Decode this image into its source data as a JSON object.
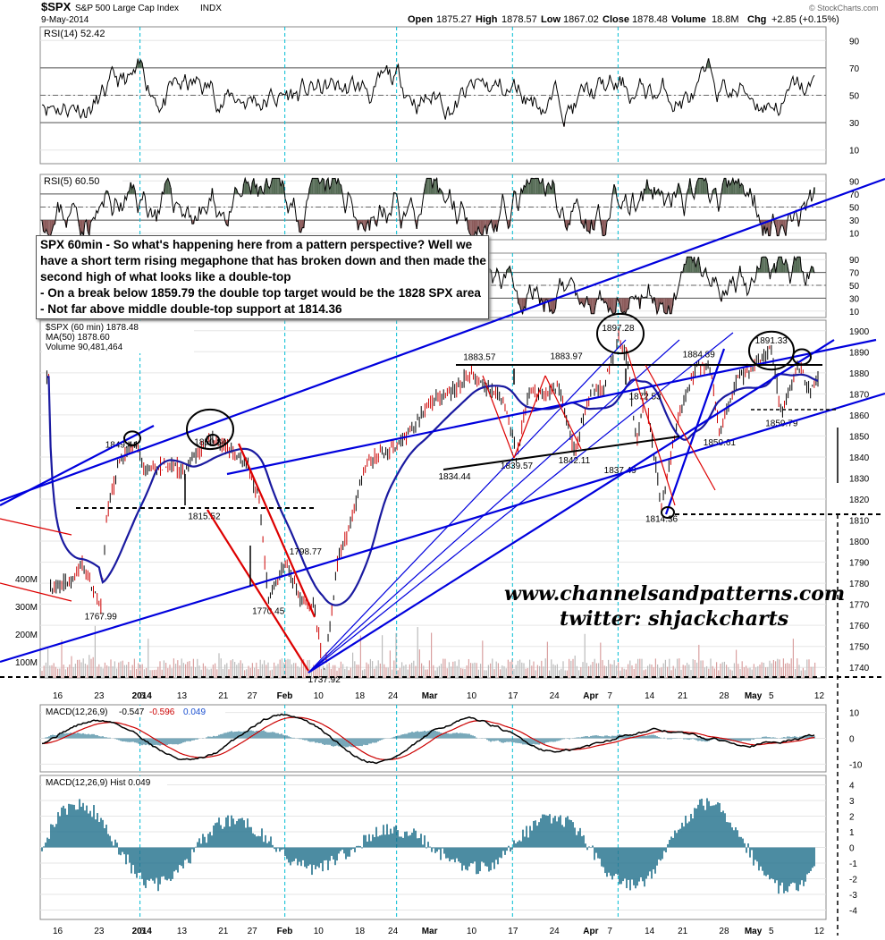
{
  "header": {
    "symbol": "$SPX",
    "name": "S&P 500 Large Cap Index",
    "exchange": "INDX",
    "date": "9-May-2014",
    "open_label": "Open",
    "open": "1875.27",
    "high_label": "High",
    "high": "1878.57",
    "low_label": "Low",
    "low": "1867.02",
    "close_label": "Close",
    "close": "1878.48",
    "volume_label": "Volume",
    "volume": "18.8M",
    "chg_label": "Chg",
    "chg": "+2.85 (+0.15%)",
    "copyright": "© StockCharts.com"
  },
  "note": {
    "lines": [
      "SPX 60min - So what's happening here from a pattern perspective? Well we",
      "have a short term rising megaphone that has broken down and then made the",
      "second high of what looks like a double-top",
      "- On a break below 1859.79 the double top target would be the 1828 SPX area",
      "- Not far above middle double-top support at 1814.36"
    ]
  },
  "watermark": {
    "site": "www.channelsandpatterns.com",
    "twitter": "twitter: shjackcharts"
  },
  "colors": {
    "price": "#000000",
    "ma": "#1a1aa0",
    "trend": "#0000dd",
    "pattern": "#dd0000",
    "rsi_up": "#556b55",
    "rsi_down": "#8b5a5a",
    "macd_hist": "#1f6f8b",
    "cycle": "#00bcd4"
  },
  "chart_data": [
    {
      "type": "line",
      "panel": "RSI(14)",
      "title": "RSI(14) 52.42",
      "yticks": [
        10,
        30,
        50,
        70,
        90
      ],
      "ylim": [
        0,
        100
      ],
      "overbought": 70,
      "oversold": 30,
      "mid": 50
    },
    {
      "type": "line",
      "panel": "RSI(5)",
      "title": "RSI(5) 60.50",
      "yticks": [
        10,
        30,
        50,
        70,
        90
      ],
      "ylim": [
        0,
        100
      ]
    },
    {
      "type": "line",
      "panel": "RSI(5) lower",
      "yticks": [
        10,
        30,
        50,
        70,
        90
      ],
      "ylim": [
        0,
        100
      ]
    },
    {
      "type": "line",
      "panel": "price",
      "legend": [
        "$SPX (60 min) 1878.48",
        "MA(50) 1878.60",
        "Volume 90,481,464"
      ],
      "series": [
        {
          "name": "$SPX (60 min)"
        },
        {
          "name": "MA(50)"
        }
      ],
      "yticks": [
        1740,
        1750,
        1760,
        1770,
        1780,
        1790,
        1800,
        1810,
        1820,
        1830,
        1840,
        1850,
        1860,
        1870,
        1880,
        1890,
        1900
      ],
      "ylim": [
        1735,
        1905
      ],
      "volume_ticks": [
        "100M",
        "200M",
        "300M",
        "400M"
      ],
      "x_labels": [
        "16",
        "23",
        "2014",
        "6",
        "13",
        "21",
        "27",
        "Feb",
        "10",
        "18",
        "24",
        "Mar",
        "10",
        "17",
        "24",
        "Apr",
        "7",
        "14",
        "21",
        "28",
        "May",
        "5",
        "12"
      ],
      "x_values": [
        0.0,
        1.0,
        2.0,
        2.1,
        3.0,
        4.0,
        4.7,
        5.5,
        6.3,
        7.3,
        8.1,
        9.0,
        10.0,
        11.0,
        12.0,
        12.9,
        13.4,
        14.3,
        15.1,
        16.1,
        16.8,
        17.3,
        18.4
      ],
      "annotations": [
        {
          "x": 1.55,
          "y": 1849.44,
          "label": "1849.44"
        },
        {
          "x": 3.7,
          "y": 1850.84,
          "label": "1850.84"
        },
        {
          "x": 3.55,
          "y": 1815.52,
          "label": "1815.52"
        },
        {
          "x": 6.0,
          "y": 1798.77,
          "label": "1798.77"
        },
        {
          "x": 5.1,
          "y": 1770.45,
          "label": "1770.45"
        },
        {
          "x": 1.05,
          "y": 1767.99,
          "label": "1767.99"
        },
        {
          "x": 6.45,
          "y": 1737.92,
          "label": "1737.92"
        },
        {
          "x": 10.2,
          "y": 1883.57,
          "label": "1883.57"
        },
        {
          "x": 12.3,
          "y": 1883.97,
          "label": "1883.97"
        },
        {
          "x": 9.6,
          "y": 1834.44,
          "label": "1834.44"
        },
        {
          "x": 11.1,
          "y": 1839.57,
          "label": "1839.57"
        },
        {
          "x": 12.5,
          "y": 1842.11,
          "label": "1842.11"
        },
        {
          "x": 13.55,
          "y": 1897.28,
          "label": "1897.28"
        },
        {
          "x": 14.2,
          "y": 1872.53,
          "label": "1872.53"
        },
        {
          "x": 13.6,
          "y": 1837.49,
          "label": "1837.49"
        },
        {
          "x": 14.6,
          "y": 1814.36,
          "label": "1814.36"
        },
        {
          "x": 15.5,
          "y": 1884.89,
          "label": "1884.89"
        },
        {
          "x": 16.0,
          "y": 1850.61,
          "label": "1850.61"
        },
        {
          "x": 17.25,
          "y": 1891.33,
          "label": "1891.33"
        },
        {
          "x": 17.5,
          "y": 1859.79,
          "label": "1859.79"
        }
      ],
      "levels": [
        1884,
        1860,
        1844,
        1815.52,
        1814.36,
        1738
      ]
    },
    {
      "type": "line",
      "panel": "MACD",
      "title_prefix": "MACD(12,26,9)",
      "value1": "-0.547",
      "value2": "-0.596",
      "value3": "0.049",
      "yticks": [
        -10,
        0,
        10
      ],
      "ylim": [
        -13,
        13
      ]
    },
    {
      "type": "bar",
      "panel": "MACD Hist",
      "title": "MACD(12,26,9) Hist 0.049",
      "yticks": [
        -4,
        -3,
        -2,
        -1,
        0,
        1,
        2,
        3,
        4
      ],
      "ylim": [
        -4.6,
        4.6
      ]
    }
  ]
}
